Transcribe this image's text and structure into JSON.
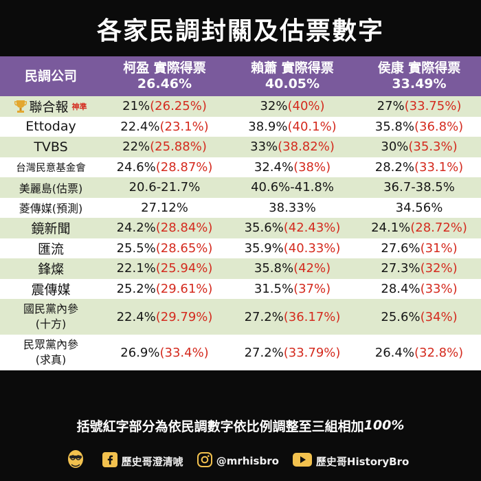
{
  "title": "各家民調封關及估票數字",
  "header": {
    "corner": "民調公司",
    "candidates": [
      {
        "name": "柯盈 實際得票",
        "pct": "26.46%"
      },
      {
        "name": "賴蕭 實際得票",
        "pct": "40.05%"
      },
      {
        "name": "侯康 實際得票",
        "pct": "33.49%"
      }
    ]
  },
  "rows": [
    {
      "name": "聯合報",
      "tag": "神準",
      "cells": [
        {
          "raw": "21%",
          "adj": "(26.25%)"
        },
        {
          "raw": "32%",
          "adj": "(40%)"
        },
        {
          "raw": "27%",
          "adj": "(33.75%)"
        }
      ]
    },
    {
      "name": "Ettoday",
      "cells": [
        {
          "raw": "22.4%",
          "adj": "(23.1%)"
        },
        {
          "raw": "38.9%",
          "adj": "(40.1%)"
        },
        {
          "raw": "35.8%",
          "adj": "(36.8%)"
        }
      ]
    },
    {
      "name": "TVBS",
      "cells": [
        {
          "raw": "22%",
          "adj": "(25.88%)"
        },
        {
          "raw": "33%",
          "adj": "(38.82%)"
        },
        {
          "raw": "30%",
          "adj": "(35.3%)"
        }
      ]
    },
    {
      "name": "台灣民意基金會",
      "cells": [
        {
          "raw": "24.6%",
          "adj": "(28.87%)"
        },
        {
          "raw": "32.4%",
          "adj": "(38%)"
        },
        {
          "raw": "28.2%",
          "adj": "(33.1%)"
        }
      ]
    },
    {
      "name": "美麗島(估票)",
      "cells": [
        {
          "raw": "20.6-21.7%",
          "adj": ""
        },
        {
          "raw": "40.6%-41.8%",
          "adj": ""
        },
        {
          "raw": "36.7-38.5%",
          "adj": ""
        }
      ]
    },
    {
      "name": "菱傳媒(預測)",
      "cells": [
        {
          "raw": "27.12%",
          "adj": ""
        },
        {
          "raw": "38.33%",
          "adj": ""
        },
        {
          "raw": "34.56%",
          "adj": ""
        }
      ]
    },
    {
      "name": "鏡新聞",
      "cells": [
        {
          "raw": "24.2%",
          "adj": "(28.84%)"
        },
        {
          "raw": "35.6%",
          "adj": "(42.43%)"
        },
        {
          "raw": "24.1%",
          "adj": "(28.72%)"
        }
      ]
    },
    {
      "name": "匯流",
      "cells": [
        {
          "raw": "25.5%",
          "adj": "(28.65%)"
        },
        {
          "raw": "35.9%",
          "adj": "(40.33%)"
        },
        {
          "raw": "27.6%",
          "adj": "(31%)"
        }
      ]
    },
    {
      "name": "鋒燦",
      "cells": [
        {
          "raw": "22.1%",
          "adj": "(25.94%)"
        },
        {
          "raw": "35.8%",
          "adj": "(42%)"
        },
        {
          "raw": "27.3%",
          "adj": "(32%)"
        }
      ]
    },
    {
      "name": "震傳媒",
      "cells": [
        {
          "raw": "25.2%",
          "adj": "(29.61%)"
        },
        {
          "raw": "31.5%",
          "adj": "(37%)"
        },
        {
          "raw": "28.4%",
          "adj": "(33%)"
        }
      ]
    },
    {
      "name": "國民黨內參",
      "name2": "(十方)",
      "cells": [
        {
          "raw": "22.4%",
          "adj": "(29.79%)"
        },
        {
          "raw": "27.2%",
          "adj": "(36.17%)"
        },
        {
          "raw": "25.6%",
          "adj": "(34%)"
        }
      ]
    },
    {
      "name": "民眾黨內參",
      "name2": "(求真)",
      "cells": [
        {
          "raw": "26.9%",
          "adj": "(33.4%)"
        },
        {
          "raw": "27.2%",
          "adj": "(33.79%)"
        },
        {
          "raw": "26.4%",
          "adj": "(32.8%)"
        }
      ]
    }
  ],
  "note": {
    "text": "括號紅字部分為依民調數字依比例調整至三組相加",
    "em": "100%"
  },
  "footer": {
    "facebook": "歷史哥澄清唬",
    "instagram": "@mrhisbro",
    "youtube": "歷史哥HistoryBro"
  },
  "colors": {
    "header_bg": "#7a5a9c",
    "row_alt": "#dfe9cd",
    "adjusted_text": "#d42a1e",
    "background": "#0b0b0b"
  },
  "icons": [
    "trophy-icon",
    "mascot-icon",
    "facebook-icon",
    "instagram-icon",
    "youtube-icon"
  ]
}
